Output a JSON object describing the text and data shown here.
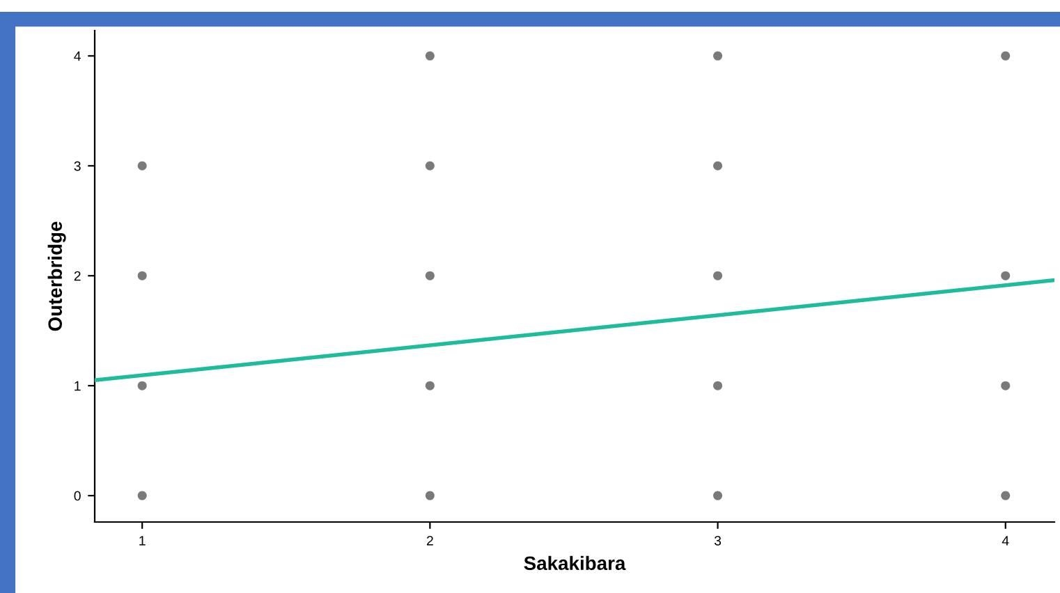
{
  "chart_data": {
    "type": "scatter",
    "xlabel": "Sakakibara",
    "ylabel": "Outerbridge",
    "xlim": [
      0.835,
      4.17
    ],
    "xticks": [
      1,
      2,
      3,
      4
    ],
    "ylim": [
      -0.24,
      4.23
    ],
    "yticks": [
      0,
      1,
      2,
      3,
      4
    ],
    "grid": false,
    "series": [
      {
        "marker": "circle",
        "color": "#7a7a7a",
        "x": [
          1,
          1,
          1,
          1,
          2,
          2,
          2,
          2,
          2,
          3,
          3,
          3,
          3,
          3,
          4,
          4,
          4,
          4
        ],
        "values": [
          0,
          1,
          2,
          3,
          0,
          1,
          2,
          3,
          4,
          0,
          1,
          2,
          3,
          4,
          0,
          1,
          2,
          4
        ]
      },
      {
        "type": "line",
        "color": "#1ebc9c",
        "x": [
          0.835,
          4.17
        ],
        "values": [
          1.05,
          1.96
        ]
      }
    ]
  }
}
